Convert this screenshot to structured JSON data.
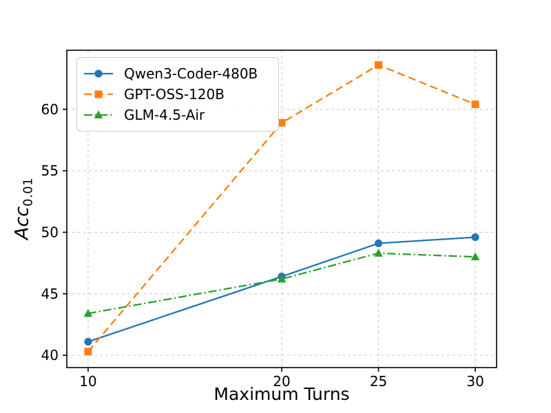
{
  "figure": {
    "background": "#ffffff",
    "text_color": "#000000",
    "grid_color": "#cccccc",
    "frame_color": "#000000"
  },
  "chart_data": {
    "type": "line",
    "title": "",
    "xlabel": "Maximum Turns",
    "ylabel": "Acc_0.01",
    "ylabel_parts": {
      "main": "Acc",
      "sub": "0.01"
    },
    "x": [
      10,
      20,
      25,
      30
    ],
    "xticks": [
      "10",
      "20",
      "25",
      "30"
    ],
    "xtick_values": [
      10,
      20,
      25,
      30
    ],
    "yticks": [
      "40",
      "45",
      "50",
      "55",
      "60"
    ],
    "ytick_values": [
      40,
      45,
      50,
      55,
      60
    ],
    "xlim": [
      8.9,
      31.1
    ],
    "ylim": [
      39.0,
      64.8
    ],
    "grid": true,
    "grid_style": "dashed",
    "legend_position": "upper left",
    "series": [
      {
        "name": "Qwen3-Coder-480B",
        "color": "#1f77b4",
        "linestyle": "solid",
        "marker": "circle",
        "values": [
          41.1,
          46.4,
          49.1,
          49.6
        ]
      },
      {
        "name": "GPT-OSS-120B",
        "color": "#ff7f0e",
        "linestyle": "dashed",
        "marker": "square",
        "values": [
          40.3,
          58.9,
          63.6,
          60.4
        ]
      },
      {
        "name": "GLM-4.5-Air",
        "color": "#2ca02c",
        "linestyle": "dashdot",
        "marker": "triangle",
        "values": [
          43.4,
          46.2,
          48.3,
          48.0
        ]
      }
    ]
  }
}
